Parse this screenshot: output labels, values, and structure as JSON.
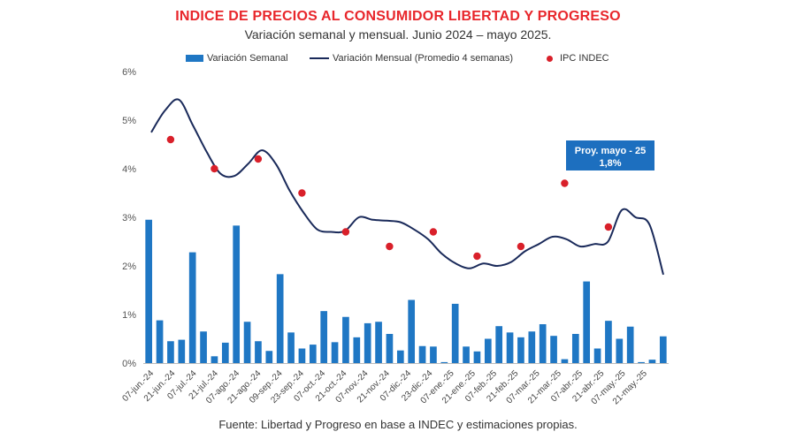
{
  "header": {
    "title": "INDICE DE PRECIOS AL CONSUMIDOR LIBERTAD Y PROGRESO",
    "subtitle": "Variación semanal y mensual. Junio 2024 – mayo 2025."
  },
  "legend": {
    "bar_label": "Variación Semanal",
    "line_label": "Variación Mensual (Promedio 4 semanas)",
    "dot_label": "IPC INDEC"
  },
  "source": "Fuente: Libertad y Progreso en base a INDEC y estimaciones propias.",
  "colors": {
    "title": "#e8262b",
    "bar": "#1f77c4",
    "line": "#1a2a5a",
    "dot": "#d9202a",
    "callout": "#1d6fbf"
  },
  "chart_data": {
    "type": "bar+line+scatter",
    "title": "INDICE DE PRECIOS AL CONSUMIDOR LIBERTAD Y PROGRESO",
    "ylim": [
      0,
      6
    ],
    "y_ticks": [
      "0%",
      "1%",
      "2%",
      "3%",
      "4%",
      "5%",
      "6%"
    ],
    "x_tick_labels": [
      "07-jun.-24",
      "21-jun.-24",
      "07-jul.-24",
      "21-jul.-24",
      "07-ago.-24",
      "21-ago.-24",
      "09-sep.-24",
      "23-sep.-24",
      "07-oct.-24",
      "21-oct.-24",
      "07-nov.-24",
      "21-nov.-24",
      "07-dic.-24",
      "23-dic.-24",
      "07-ene.-25",
      "21-ene.-25",
      "07-feb.-25",
      "21-feb.-25",
      "07-mar.-25",
      "21-mar.-25",
      "07-abr.-25",
      "21-abr.-25",
      "07-may.-25",
      "21-may.-25"
    ],
    "weekly_bars": [
      2.95,
      0.88,
      0.45,
      0.48,
      2.28,
      0.65,
      0.14,
      0.42,
      2.83,
      0.85,
      0.45,
      0.25,
      1.83,
      0.63,
      0.3,
      0.38,
      1.07,
      0.43,
      0.95,
      0.53,
      0.82,
      0.85,
      0.6,
      0.26,
      1.3,
      0.35,
      0.34,
      0.02,
      1.22,
      0.34,
      0.24,
      0.5,
      0.76,
      0.63,
      0.53,
      0.65,
      0.8,
      0.56,
      0.08,
      0.6,
      1.68,
      0.3,
      0.87,
      0.5,
      0.75,
      0.02,
      0.07,
      0.55
    ],
    "monthly_line": [
      4.75,
      5.2,
      5.42,
      4.9,
      4.35,
      3.9,
      3.85,
      4.1,
      4.38,
      4.1,
      3.55,
      3.1,
      2.75,
      2.7,
      2.72,
      3.0,
      2.95,
      2.93,
      2.9,
      2.75,
      2.55,
      2.25,
      2.05,
      1.95,
      2.05,
      2.0,
      2.08,
      2.3,
      2.45,
      2.6,
      2.55,
      2.4,
      2.45,
      2.5,
      3.15,
      3.0,
      2.85,
      1.82
    ],
    "ipc_indec": [
      {
        "month": "jun.-24",
        "value": 4.6
      },
      {
        "month": "jul.-24",
        "value": 4.0
      },
      {
        "month": "ago.-24",
        "value": 4.2
      },
      {
        "month": "sep.-24",
        "value": 3.5
      },
      {
        "month": "oct.-24",
        "value": 2.7
      },
      {
        "month": "nov.-24",
        "value": 2.4
      },
      {
        "month": "dic.-24",
        "value": 2.7
      },
      {
        "month": "ene.-25",
        "value": 2.2
      },
      {
        "month": "feb.-25",
        "value": 2.4
      },
      {
        "month": "mar.-25",
        "value": 3.7
      },
      {
        "month": "abr.-25",
        "value": 2.8
      }
    ],
    "ipc_x_index": [
      5,
      13,
      21,
      29,
      37,
      45,
      53,
      61,
      69,
      77,
      85
    ],
    "callout": {
      "line1": "Proy. mayo - 25",
      "line2": "1,8%"
    }
  }
}
